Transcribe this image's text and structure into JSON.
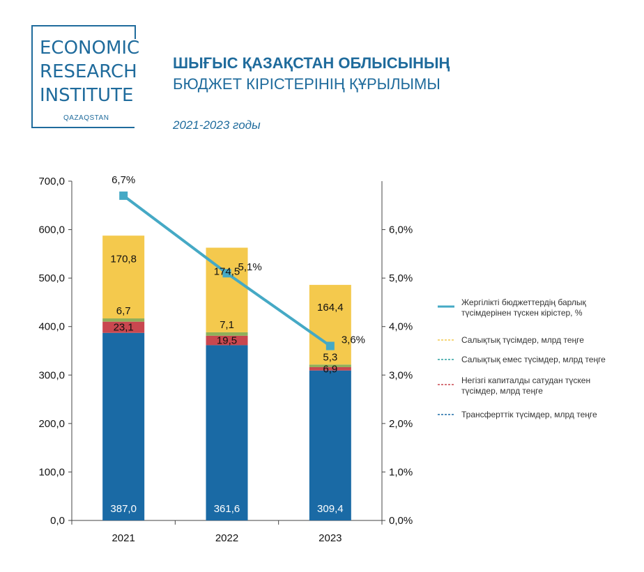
{
  "logo": {
    "line1": "ECONOMIC",
    "line2": "RESEARCH",
    "line3": "INSTITUTE",
    "sub": "QAZAQSTAN"
  },
  "header": {
    "title_line1": "ШЫҒЫС ҚАЗАҚСТАН ОБЛЫСЫНЫҢ",
    "title_line2": "БЮДЖЕТ КІРІСТЕРІНІҢ ҚҰРЫЛЫМЫ",
    "subtitle": "2021-2023 годы"
  },
  "colors": {
    "transfers": "#1a6aa5",
    "capital": "#c9474f",
    "nontax": "#8faf5a",
    "tax": "#f4c94d",
    "line": "#45a9c5",
    "brand": "#1f6b9c"
  },
  "chart_data": {
    "type": "bar",
    "stacked": true,
    "categories": [
      "2021",
      "2022",
      "2023"
    ],
    "series": [
      {
        "name": "Трансферттік түсімдер, млрд теңге",
        "key": "transfers",
        "values": [
          387.0,
          361.6,
          309.4
        ],
        "labels": [
          "387,0",
          "361,6",
          "309,4"
        ]
      },
      {
        "name": "Негізгі капиталды сатудан түскен түсімдер, млрд теңге",
        "key": "capital",
        "values": [
          23.1,
          19.5,
          6.9
        ],
        "labels": [
          "23,1",
          "19,5",
          "6,9"
        ]
      },
      {
        "name": "Салықтық емес түсімдер, млрд теңге",
        "key": "nontax",
        "values": [
          6.7,
          7.1,
          5.3
        ],
        "labels": [
          "6,7",
          "7,1",
          "5,3"
        ]
      },
      {
        "name": "Салықтық түсімдер, млрд теңге",
        "key": "tax",
        "values": [
          170.8,
          174.5,
          164.4
        ],
        "labels": [
          "170,8",
          "174,5",
          "164,4"
        ]
      }
    ],
    "line_series": {
      "name": "Жергілікті бюджеттердің барлық түсімдерінен түскен кірістер, %",
      "values": [
        6.7,
        5.1,
        3.6
      ],
      "labels": [
        "6,7%",
        "5,1%",
        "3,6%"
      ],
      "axis": "right"
    },
    "ylim": [
      0,
      700
    ],
    "y_ticks": [
      "0,0",
      "100,0",
      "200,0",
      "300,0",
      "400,0",
      "500,0",
      "600,0",
      "700,0"
    ],
    "y_tick_values": [
      0,
      100,
      200,
      300,
      400,
      500,
      600,
      700
    ],
    "y2lim": [
      0,
      7
    ],
    "y2_ticks": [
      "0,0%",
      "1,0%",
      "2,0%",
      "3,0%",
      "4,0%",
      "5,0%",
      "6,0%"
    ],
    "y2_tick_values": [
      0,
      1,
      2,
      3,
      4,
      5,
      6
    ],
    "legend": {
      "position": "right",
      "items": [
        {
          "line1": "Жергілікті бюджеттердің барлық",
          "line2": "түсімдерінен түскен кірістер, %"
        },
        {
          "line1": "Салықтық түсімдер, млрд теңге",
          "line2": ""
        },
        {
          "line1": "Салықтық емес түсімдер, млрд теңге",
          "line2": ""
        },
        {
          "line1": "Негізгі капиталды сатудан түскен",
          "line2": "түсімдер, млрд теңге"
        },
        {
          "line1": "Трансферттік түсімдер, млрд теңге",
          "line2": ""
        }
      ]
    }
  }
}
